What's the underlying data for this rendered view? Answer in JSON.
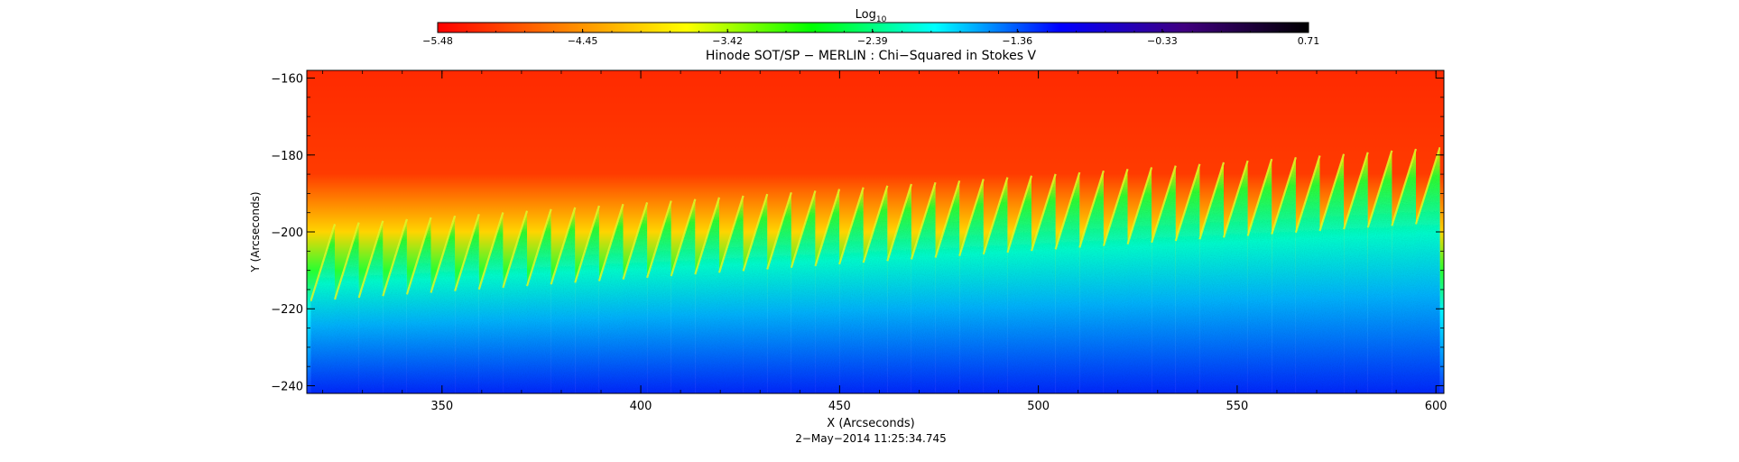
{
  "chart_data": {
    "type": "heatmap",
    "title": "Hinode SOT/SP − MERLIN : Chi−Squared in Stokes V",
    "subtitle": "2−May−2014 11:25:34.745",
    "xlabel": "X (Arcseconds)",
    "ylabel": "Y (Arcseconds)",
    "xlim": [
      316,
      602
    ],
    "ylim": [
      -242,
      -158
    ],
    "x_ticks": [
      350,
      400,
      450,
      500,
      550,
      600
    ],
    "y_ticks": [
      -160,
      -180,
      -200,
      -220,
      -240
    ],
    "x_minor_step": 10,
    "y_minor_step": 5,
    "colorbar": {
      "label_main": "Log",
      "label_sub": "10",
      "range": [
        -5.48,
        0.71
      ],
      "ticks": [
        -5.48,
        -4.45,
        -3.42,
        -2.39,
        -1.36,
        -0.33,
        0.71
      ],
      "tick_labels": [
        "−5.48",
        "−4.45",
        "−3.42",
        "−2.39",
        "−1.36",
        "−0.33",
        "0.71"
      ],
      "colors": [
        "#ff0000",
        "#ff8000",
        "#ffff00",
        "#00ff00",
        "#00ffff",
        "#0000ff",
        "#400080",
        "#000000"
      ]
    },
    "pattern": {
      "description_free": true,
      "stripe_count": 47,
      "stripe_x_start": 317,
      "stripe_x_end": 601,
      "edge_y_left_start": -218,
      "edge_y_right_start": -198
    }
  }
}
